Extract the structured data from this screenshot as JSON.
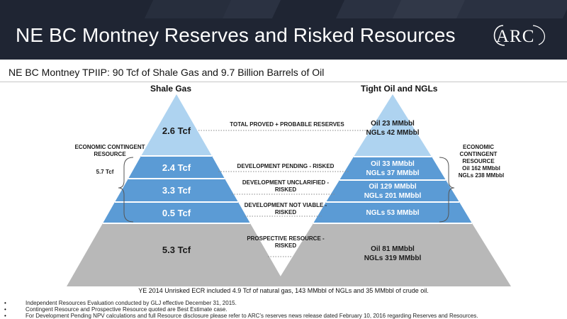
{
  "header": {
    "title": "NE BC Montney Reserves and Risked Resources",
    "logo_text": "ARC"
  },
  "subtitle": "NE BC Montney TPIIP: 90 Tcf of Shale Gas and 9.7 Billion Barrels of Oil",
  "shale_gas": {
    "title": "Shale Gas",
    "tiers": [
      "2.6 Tcf",
      "2.4 Tcf",
      "3.3 Tcf",
      "0.5 Tcf",
      "5.3 Tcf"
    ],
    "ecr_label": "ECONOMIC CONTINGENT RESOURCE",
    "ecr_value": "5.7 Tcf"
  },
  "tight_oil": {
    "title": "Tight Oil and NGLs",
    "tiers": [
      {
        "line1": "Oil 23 MMbbl",
        "line2": "NGLs 42 MMbbl"
      },
      {
        "line1": "Oil 33 MMbbl",
        "line2": "NGLs 37 MMbbl"
      },
      {
        "line1": "Oil 129 MMbbl",
        "line2": "NGLs 201 MMbbl"
      },
      {
        "line1": "NGLs 53 MMbbl",
        "line2": ""
      },
      {
        "line1": "Oil 81 MMbbl",
        "line2": "NGLs 319 MMbbl"
      }
    ],
    "ecr_label": "ECONOMIC CONTINGENT RESOURCE",
    "ecr_value_1": "Oil 162 MMbbl",
    "ecr_value_2": "NGLs 238 MMbbl"
  },
  "categories": [
    "TOTAL PROVED + PROBABLE RESERVES",
    "DEVELOPMENT PENDING - RISKED",
    "DEVELOPMENT UNCLARIFIED - RISKED",
    "DEVELOPMENT NOT VIABLE - RISKED",
    "PROSPECTIVE RESOURCE - RISKED"
  ],
  "note": "YE 2014 Unrisked ECR included 4.9 Tcf of natural gas, 143 MMbbl of NGLs and 35 MMbbl of crude oil.",
  "footnotes": [
    "Independent Resources Evaluation conducted by GLJ effective December 31, 2015.",
    "Contingent Resource and Prospective Resource quoted are Best Estimate case.",
    "For Development Pending NPV calculations and full Resource disclosure please refer to ARC’s reserves news release dated February 10, 2016 regarding Reserves and Resources."
  ],
  "colors": {
    "header_bg": "#1f2533",
    "tier_top": "#aed3f0",
    "tier_mid": "#5b9bd5",
    "tier_bottom": "#b8b8b8",
    "dots": "#888888"
  },
  "icons": [
    "arc-logo",
    "brace-icon"
  ]
}
